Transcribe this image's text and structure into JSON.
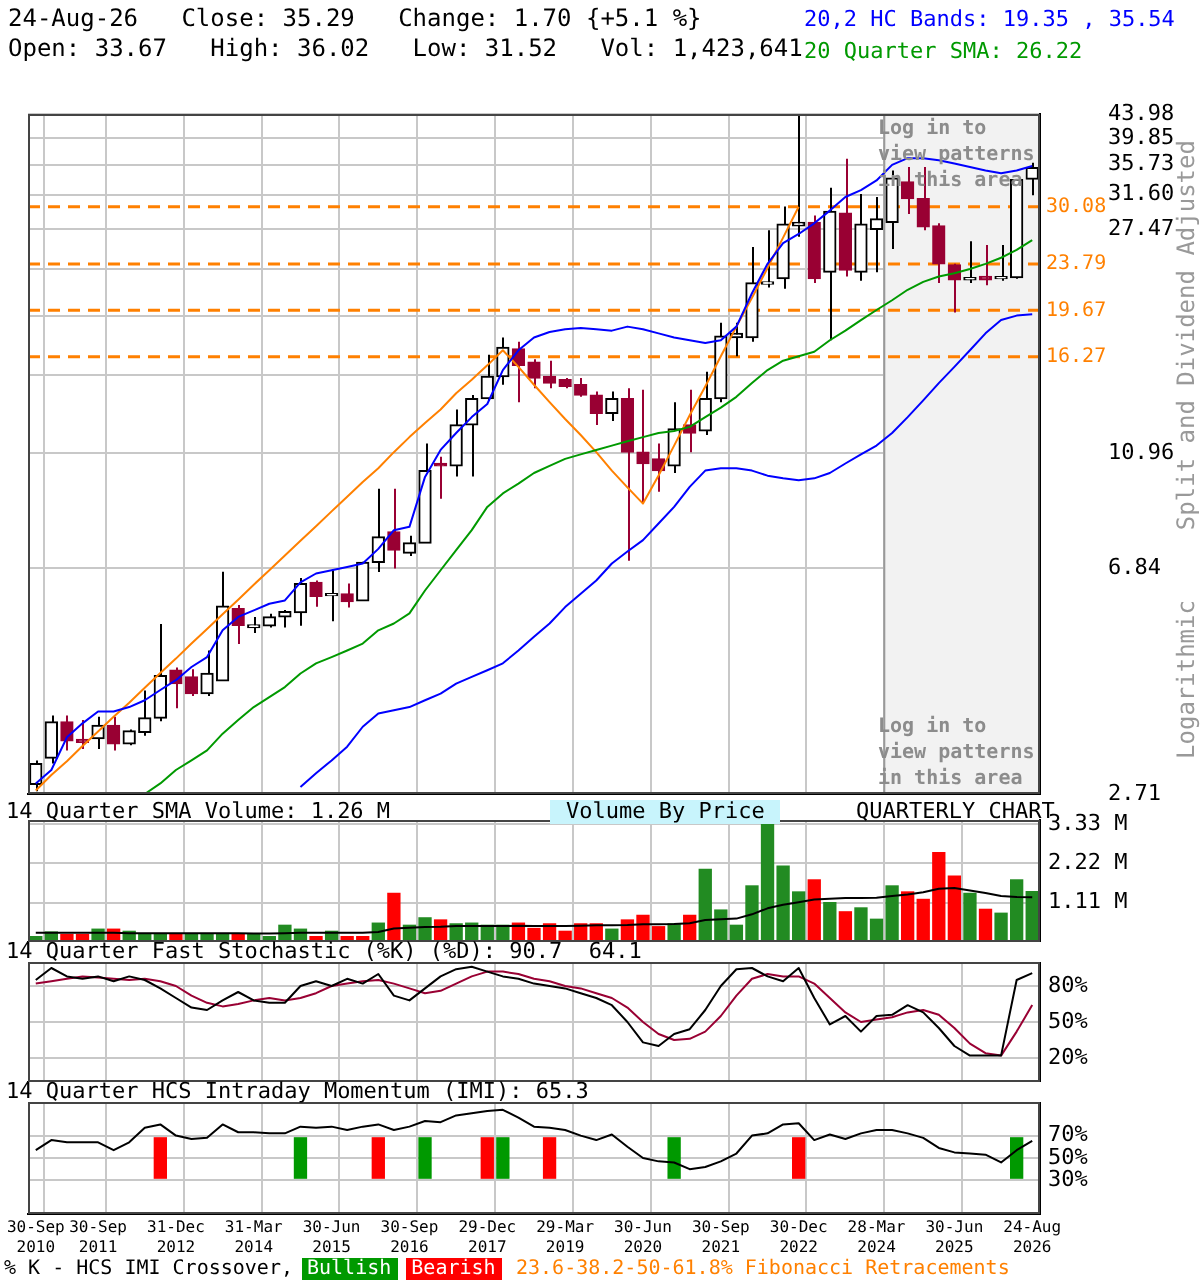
{
  "chart_data": [
    {
      "type": "candlestick",
      "title": "24-Aug-26   Close: 35.29   Change: 1.70 {+5.1 %}",
      "subtitle": "Open: 33.67   High: 36.02   Low: 31.52   Vol: 1,423,641",
      "ylabel": "Split and Dividend Adjusted",
      "annotations": [
        "Log in to view patterns in this area",
        "Log in to view patterns in this area",
        "Logarithmic"
      ],
      "categories": [
        "30-Sep 2010",
        null,
        null,
        null,
        "30-Sep 2011",
        null,
        null,
        null,
        null,
        "31-Dec 2012",
        null,
        null,
        null,
        null,
        "31-Mar 2014",
        null,
        null,
        null,
        null,
        "30-Jun 2015",
        null,
        null,
        null,
        null,
        "30-Sep 2016",
        null,
        null,
        null,
        null,
        "29-Dec 2017",
        null,
        null,
        null,
        null,
        "29-Mar 2019",
        null,
        null,
        null,
        null,
        "30-Jun 2020",
        null,
        null,
        null,
        null,
        "30-Sep 2021",
        null,
        null,
        null,
        null,
        "30-Dec 2022",
        null,
        null,
        null,
        null,
        "28-Mar 2024",
        null,
        null,
        null,
        null,
        "30-Jun 2025",
        null,
        null,
        null,
        null,
        "24-Aug 2026"
      ],
      "ohlc": [
        [
          2.82,
          3.11,
          2.74,
          3.07
        ],
        [
          3.14,
          3.74,
          3.07,
          3.64
        ],
        [
          3.64,
          3.74,
          3.24,
          3.37
        ],
        [
          3.39,
          3.67,
          3.26,
          3.35
        ],
        [
          3.4,
          3.72,
          3.26,
          3.59
        ],
        [
          3.59,
          3.72,
          3.24,
          3.33
        ],
        [
          3.33,
          3.53,
          3.31,
          3.51
        ],
        [
          3.49,
          4.14,
          3.44,
          3.7
        ],
        [
          3.7,
          5.44,
          3.65,
          4.4
        ],
        [
          4.5,
          4.55,
          3.85,
          4.26
        ],
        [
          4.38,
          4.52,
          4.05,
          4.09
        ],
        [
          4.09,
          4.88,
          4.05,
          4.44
        ],
        [
          4.31,
          6.74,
          4.31,
          5.85
        ],
        [
          5.79,
          5.88,
          5.01,
          5.41
        ],
        [
          5.36,
          5.6,
          5.24,
          5.42
        ],
        [
          5.4,
          5.67,
          5.36,
          5.6
        ],
        [
          5.6,
          5.76,
          5.36,
          5.72
        ],
        [
          5.7,
          6.57,
          5.4,
          6.42
        ],
        [
          6.45,
          6.5,
          5.84,
          6.09
        ],
        [
          6.11,
          6.78,
          5.5,
          6.13
        ],
        [
          6.15,
          6.42,
          5.82,
          5.96
        ],
        [
          5.98,
          7.02,
          5.98,
          7.0
        ],
        [
          7.0,
          9.47,
          6.73,
          7.77
        ],
        [
          7.93,
          9.47,
          6.83,
          7.36
        ],
        [
          7.27,
          7.81,
          7.19,
          7.58
        ],
        [
          7.58,
          11.4,
          7.58,
          10.2
        ],
        [
          10.5,
          10.8,
          9.09,
          10.4
        ],
        [
          10.4,
          13.1,
          9.96,
          12.3
        ],
        [
          12.3,
          13.9,
          9.96,
          13.7
        ],
        [
          13.7,
          16.4,
          13.6,
          15.0
        ],
        [
          15.0,
          17.6,
          14.5,
          16.9
        ],
        [
          16.8,
          17.3,
          13.5,
          15.7
        ],
        [
          15.9,
          16.1,
          14.3,
          14.9
        ],
        [
          15.0,
          16.0,
          14.3,
          14.6
        ],
        [
          14.8,
          14.9,
          14.3,
          14.4
        ],
        [
          14.5,
          14.9,
          13.8,
          13.9
        ],
        [
          13.9,
          14.1,
          12.3,
          12.9
        ],
        [
          12.9,
          14.1,
          12.5,
          13.7
        ],
        [
          13.7,
          14.3,
          7.05,
          11.0
        ],
        [
          11.0,
          14.2,
          8.91,
          10.5
        ],
        [
          10.7,
          11.4,
          9.35,
          10.2
        ],
        [
          10.4,
          13.5,
          10.1,
          12.1
        ],
        [
          12.3,
          14.2,
          11.0,
          11.9
        ],
        [
          12.0,
          15.3,
          11.8,
          13.7
        ],
        [
          13.7,
          18.7,
          13.5,
          17.7
        ],
        [
          17.6,
          18.7,
          16.3,
          17.9
        ],
        [
          17.6,
          25.5,
          17.3,
          22.0
        ],
        [
          21.9,
          27.3,
          21.6,
          22.1
        ],
        [
          22.4,
          30.1,
          21.5,
          28.0
        ],
        [
          27.8,
          43.98,
          26.6,
          28.2
        ],
        [
          28.2,
          29.0,
          22.0,
          22.4
        ],
        [
          23.0,
          32.5,
          17.4,
          29.5
        ],
        [
          29.3,
          36.6,
          22.6,
          23.2
        ],
        [
          23.0,
          31.7,
          22.2,
          28.0
        ],
        [
          27.4,
          31.3,
          23.0,
          28.6
        ],
        [
          28.2,
          34.9,
          25.3,
          33.8
        ],
        [
          33.3,
          35.4,
          29.2,
          31.1
        ],
        [
          31.1,
          35.4,
          27.3,
          27.7
        ],
        [
          27.8,
          28.1,
          22.0,
          23.8
        ],
        [
          23.7,
          23.8,
          19.5,
          22.3
        ],
        [
          22.3,
          26.1,
          22.0,
          22.5
        ],
        [
          22.6,
          25.7,
          21.8,
          22.3
        ],
        [
          22.4,
          25.7,
          22.2,
          22.5
        ],
        [
          22.5,
          33.7,
          22.4,
          33.59
        ],
        [
          33.67,
          36.02,
          31.52,
          35.29
        ]
      ],
      "series": [
        {
          "type": "line",
          "name": "20,2 HC Bands: 19.35 , 35.54",
          "color": "#0000ff",
          "values": [
            2.83,
            2.99,
            3.42,
            3.62,
            3.8,
            3.8,
            3.87,
            3.98,
            4.15,
            4.32,
            4.56,
            4.75,
            5.3,
            5.6,
            5.75,
            5.91,
            5.99,
            6.45,
            6.69,
            6.78,
            6.87,
            6.97,
            7.4,
            7.99,
            8.1,
            9.94,
            11.1,
            11.9,
            12.7,
            13.4,
            15.4,
            16.7,
            17.6,
            18.0,
            18.2,
            18.3,
            18.2,
            18.1,
            18.4,
            18.2,
            17.9,
            17.6,
            17.4,
            17.2,
            17.4,
            18.4,
            21.1,
            23.8,
            25.9,
            26.9,
            28.1,
            29.6,
            31.3,
            32.2,
            33.5,
            35.7,
            36.7,
            36.7,
            36.4,
            35.9,
            35.4,
            34.9,
            34.5,
            34.9,
            35.54
          ]
        },
        {
          "type": "line",
          "color": "#0000ff",
          "values": [
            null,
            null,
            null,
            null,
            null,
            null,
            null,
            null,
            null,
            null,
            null,
            null,
            null,
            null,
            null,
            null,
            null,
            2.79,
            2.95,
            3.11,
            3.29,
            3.57,
            3.77,
            3.82,
            3.87,
            3.98,
            4.09,
            4.26,
            4.38,
            4.5,
            4.63,
            4.88,
            5.16,
            5.45,
            5.83,
            6.16,
            6.5,
            6.97,
            7.32,
            7.67,
            8.21,
            8.79,
            9.54,
            10.2,
            10.3,
            10.3,
            10.2,
            9.99,
            9.88,
            9.8,
            9.88,
            10.1,
            10.5,
            10.9,
            11.3,
            11.9,
            12.7,
            13.6,
            14.6,
            15.6,
            16.7,
            17.9,
            18.9,
            19.25,
            19.35
          ]
        },
        {
          "type": "line",
          "name": "20 Quarter SMA: 26.22",
          "color": "#009900",
          "values": [
            null,
            null,
            null,
            null,
            null,
            null,
            null,
            2.71,
            2.83,
            2.99,
            3.11,
            3.24,
            3.47,
            3.67,
            3.87,
            4.03,
            4.2,
            4.44,
            4.63,
            4.75,
            4.88,
            5.02,
            5.3,
            5.45,
            5.68,
            6.24,
            6.78,
            7.36,
            7.99,
            8.79,
            9.29,
            9.67,
            10.1,
            10.4,
            10.7,
            10.9,
            11.1,
            11.3,
            11.5,
            11.7,
            11.9,
            12.0,
            12.2,
            12.7,
            13.2,
            13.8,
            14.6,
            15.4,
            16.0,
            16.3,
            16.6,
            17.4,
            18.1,
            18.9,
            19.7,
            20.5,
            21.4,
            22.1,
            22.6,
            22.9,
            23.3,
            23.8,
            24.4,
            25.2,
            26.22
          ]
        },
        {
          "type": "line",
          "color": "#ff8000",
          "values": [
            2.75,
            2.93,
            3.1,
            3.3,
            3.5,
            3.72,
            3.94,
            4.19,
            4.45,
            4.72,
            5.02,
            5.33,
            5.66,
            6.01,
            6.39,
            6.78,
            7.2,
            7.65,
            8.12,
            8.63,
            9.16,
            9.73,
            10.3,
            11.0,
            11.7,
            12.4,
            13.1,
            14.0,
            14.8,
            15.7,
            16.7,
            15.6,
            14.5,
            13.5,
            12.6,
            11.8,
            11.0,
            10.2,
            9.52,
            8.91,
            10.0,
            11.3,
            12.8,
            14.4,
            16.3,
            18.4,
            20.7,
            23.4,
            26.5,
            30.08,
            null,
            null,
            null,
            null,
            null,
            null,
            null,
            null,
            null,
            null,
            null,
            null,
            null,
            null,
            null
          ]
        }
      ],
      "ylim": [
        2.71,
        43.98
      ],
      "yticks": [
        43.98,
        39.85,
        35.73,
        {
          "value": 31.6,
          "label": "31.60"
        },
        27.47,
        {
          "value": 23.34,
          "label": null
        },
        {
          "value": 19.22,
          "label": null
        },
        {
          "value": 15.09,
          "label": null
        },
        10.96,
        6.84,
        2.71
      ],
      "log": true,
      "grid": true,
      "legend": "top right",
      "tick_labels": "y",
      "ref_lines": [
        {
          "axis": "y",
          "value": 30.08,
          "label": "30.08",
          "color": "#ff8000",
          "line_style": "dashed"
        },
        {
          "axis": "y",
          "value": 23.79,
          "label": "23.79",
          "color": "#ff8000",
          "line_style": "dashed"
        },
        {
          "axis": "y",
          "value": 19.67,
          "label": "19.67",
          "color": "#ff8000",
          "line_style": "dashed"
        },
        {
          "axis": "y",
          "value": 16.27,
          "label": "16.27",
          "color": "#ff8000",
          "line_style": "dashed"
        }
      ],
      "bands": [
        {
          "axis": "x",
          "from": "28-Mar 2024",
          "to": "24-Aug 2026",
          "color": "#f2f2f2"
        }
      ]
    },
    {
      "type": "bar",
      "annotations": [
        "Volume By Price",
        "QUARTERLY CHART"
      ],
      "categories": [
        "30-Sep 2010",
        null,
        null,
        null,
        "30-Sep 2011",
        null,
        null,
        null,
        null,
        "31-Dec 2012",
        null,
        null,
        null,
        null,
        "31-Mar 2014",
        null,
        null,
        null,
        null,
        "30-Jun 2015",
        null,
        null,
        null,
        null,
        "30-Sep 2016",
        null,
        null,
        null,
        null,
        "29-Dec 2017",
        null,
        null,
        null,
        null,
        "29-Mar 2019",
        null,
        null,
        null,
        null,
        "30-Jun 2020",
        null,
        null,
        null,
        null,
        "30-Sep 2021",
        null,
        null,
        null,
        null,
        "30-Dec 2022",
        null,
        null,
        null,
        null,
        "28-Mar 2024",
        null,
        null,
        null,
        null,
        "30-Jun 2025",
        null,
        null,
        null,
        null,
        "24-Aug 2026"
      ],
      "series": [
        {
          "type": "bar",
          "colors": [
            "#228b22",
            "#228b22",
            "#ff0000",
            "#ff0000",
            "#228b22",
            "#ff0000",
            "#228b22",
            "#228b22",
            "#228b22",
            "#ff0000",
            "#228b22",
            "#228b22",
            "#228b22",
            "#ff0000",
            "#228b22",
            "#228b22",
            "#228b22",
            "#228b22",
            "#ff0000",
            "#228b22",
            "#ff0000",
            "#ff0000",
            "#228b22",
            "#ff0000",
            "#228b22",
            "#228b22",
            "#ff0000",
            "#228b22",
            "#228b22",
            "#228b22",
            "#228b22",
            "#ff0000",
            "#ff0000",
            "#ff0000",
            "#ff0000",
            "#ff0000",
            "#ff0000",
            "#228b22",
            "#ff0000",
            "#ff0000",
            "#ff0000",
            "#228b22",
            "#ff0000",
            "#228b22",
            "#228b22",
            "#228b22",
            "#228b22",
            "#228b22",
            "#228b22",
            "#228b22",
            "#ff0000",
            "#228b22",
            "#ff0000",
            "#228b22",
            "#228b22",
            "#228b22",
            "#ff0000",
            "#ff0000",
            "#ff0000",
            "#ff0000",
            "#228b22",
            "#ff0000",
            "#228b22",
            "#228b22",
            "#228b22"
          ],
          "values": [
            0.15,
            0.28,
            0.21,
            0.21,
            0.36,
            0.36,
            0.3,
            0.23,
            0.21,
            0.21,
            0.21,
            0.21,
            0.21,
            0.21,
            0.21,
            0.15,
            0.47,
            0.36,
            0.15,
            0.3,
            0.15,
            0.15,
            0.53,
            1.37,
            0.47,
            0.68,
            0.62,
            0.51,
            0.53,
            0.47,
            0.47,
            0.53,
            0.38,
            0.51,
            0.3,
            0.51,
            0.51,
            0.36,
            0.62,
            0.75,
            0.43,
            0.51,
            0.75,
            2.05,
            0.9,
            0.47,
            1.58,
            3.33,
            2.14,
            1.41,
            1.75,
            1.11,
            0.85,
            0.96,
            0.64,
            1.58,
            1.41,
            1.2,
            2.52,
            1.86,
            1.37,
            0.92,
            0.81,
            1.75,
            1.42
          ]
        },
        {
          "type": "line",
          "name": "14 Quarter SMA Volume: 1.26 M",
          "color": "#000000",
          "values": [
            0.26,
            0.26,
            0.26,
            0.26,
            0.26,
            0.26,
            0.25,
            0.25,
            0.25,
            0.25,
            0.25,
            0.25,
            0.25,
            0.25,
            0.24,
            0.24,
            0.25,
            0.26,
            0.26,
            0.26,
            0.26,
            0.26,
            0.28,
            0.38,
            0.4,
            0.42,
            0.43,
            0.45,
            0.45,
            0.45,
            0.45,
            0.46,
            0.45,
            0.45,
            0.45,
            0.46,
            0.47,
            0.47,
            0.48,
            0.5,
            0.5,
            0.51,
            0.53,
            0.62,
            0.64,
            0.66,
            0.78,
            0.95,
            1.05,
            1.12,
            1.2,
            1.22,
            1.24,
            1.24,
            1.25,
            1.3,
            1.34,
            1.4,
            1.5,
            1.52,
            1.45,
            1.38,
            1.3,
            1.27,
            1.26
          ]
        }
      ],
      "ylim": [
        0,
        3.44
      ],
      "yticks": [
        {
          "value": 1.11,
          "label": "1.11 M"
        },
        {
          "value": 2.22,
          "label": "2.22 M"
        },
        {
          "value": 3.33,
          "label": "3.33 M"
        }
      ],
      "grid": true,
      "legend": "top left",
      "tick_labels": "y"
    },
    {
      "type": "line",
      "title": "14 Quarter Fast Stochastic (%K) (%D): 90.7  64.1",
      "categories": [
        "30-Sep 2010",
        null,
        null,
        null,
        "30-Sep 2011",
        null,
        null,
        null,
        null,
        "31-Dec 2012",
        null,
        null,
        null,
        null,
        "31-Mar 2014",
        null,
        null,
        null,
        null,
        "30-Jun 2015",
        null,
        null,
        null,
        null,
        "30-Sep 2016",
        null,
        null,
        null,
        null,
        "29-Dec 2017",
        null,
        null,
        null,
        null,
        "29-Mar 2019",
        null,
        null,
        null,
        null,
        "30-Jun 2020",
        null,
        null,
        null,
        null,
        "30-Sep 2021",
        null,
        null,
        null,
        null,
        "30-Dec 2022",
        null,
        null,
        null,
        null,
        "28-Mar 2024",
        null,
        null,
        null,
        null,
        "30-Jun 2025",
        null,
        null,
        null,
        null,
        "24-Aug 2026"
      ],
      "series": [
        {
          "color": "#000000",
          "values": [
            85,
            95,
            88,
            86,
            88,
            84,
            88,
            85,
            78,
            70,
            62,
            60,
            68,
            75,
            68,
            66,
            66,
            80,
            84,
            80,
            86,
            82,
            90,
            72,
            68,
            78,
            88,
            94,
            96,
            92,
            88,
            86,
            82,
            80,
            78,
            74,
            70,
            64,
            50,
            33,
            30,
            40,
            44,
            60,
            80,
            94,
            95,
            88,
            84,
            95,
            70,
            48,
            55,
            42,
            55,
            56,
            64,
            58,
            45,
            30,
            22,
            22,
            22,
            85,
            90.7
          ]
        },
        {
          "color": "#990033",
          "values": [
            82,
            84,
            86,
            88,
            87,
            86,
            85,
            86,
            84,
            80,
            72,
            66,
            63,
            65,
            68,
            70,
            68,
            70,
            74,
            80,
            82,
            84,
            85,
            82,
            78,
            74,
            76,
            82,
            88,
            92,
            92,
            90,
            86,
            84,
            80,
            78,
            74,
            70,
            62,
            50,
            40,
            35,
            36,
            42,
            55,
            72,
            86,
            90,
            88,
            88,
            82,
            70,
            58,
            50,
            52,
            54,
            58,
            60,
            56,
            45,
            32,
            24,
            22,
            42,
            64.1
          ]
        }
      ],
      "ylim": [
        0,
        100
      ],
      "yticks": [
        {
          "value": 20,
          "label": "20%"
        },
        {
          "value": 50,
          "label": "50%"
        },
        {
          "value": 80,
          "label": "80%"
        }
      ],
      "grid": true,
      "tick_labels": "y"
    },
    {
      "type": "line",
      "title": "14 Quarter HCS Intraday Momentum (IMI): 65.3",
      "legend_title": "% K - HCS IMI Crossover,",
      "annotations": [
        "23.6-38.2-50-61.8% Fibonacci Retracements"
      ],
      "categories": [
        "30-Sep 2010",
        null,
        null,
        null,
        "30-Sep 2011",
        null,
        null,
        null,
        null,
        "31-Dec 2012",
        null,
        null,
        null,
        null,
        "31-Mar 2014",
        null,
        null,
        null,
        null,
        "30-Jun 2015",
        null,
        null,
        null,
        null,
        "30-Sep 2016",
        null,
        null,
        null,
        null,
        "29-Dec 2017",
        null,
        null,
        null,
        null,
        "29-Mar 2019",
        null,
        null,
        null,
        null,
        "30-Jun 2020",
        null,
        null,
        null,
        null,
        "30-Sep 2021",
        null,
        null,
        null,
        null,
        "30-Dec 2022",
        null,
        null,
        null,
        null,
        "28-Mar 2024",
        null,
        null,
        null,
        null,
        "30-Jun 2025",
        null,
        null,
        null,
        null,
        "24-Aug 2026"
      ],
      "series": [
        {
          "type": "line",
          "color": "#000000",
          "values": [
            57,
            66,
            64,
            64,
            64,
            57,
            64,
            77,
            80,
            70,
            67,
            68,
            80,
            73,
            73,
            72,
            72,
            78,
            77,
            78,
            75,
            78,
            80,
            75,
            78,
            83,
            82,
            88,
            90,
            92,
            93,
            86,
            78,
            77,
            75,
            70,
            66,
            71,
            60,
            50,
            47,
            46,
            40,
            42,
            47,
            54,
            70,
            72,
            80,
            81,
            66,
            71,
            67,
            72,
            75,
            75,
            72,
            68,
            59,
            55,
            54,
            53,
            46,
            57,
            65.3
          ]
        },
        {
          "type": "bar",
          "name": "Bullish",
          "color": "#009900",
          "base": [
            null,
            null,
            null,
            null,
            null,
            null,
            null,
            null,
            null,
            null,
            null,
            null,
            null,
            null,
            null,
            null,
            null,
            32,
            null,
            null,
            null,
            null,
            null,
            null,
            null,
            32,
            null,
            null,
            null,
            null,
            32,
            null,
            null,
            null,
            null,
            null,
            null,
            null,
            null,
            null,
            null,
            32,
            null,
            null,
            null,
            null,
            null,
            null,
            null,
            null,
            null,
            null,
            null,
            null,
            null,
            null,
            null,
            null,
            null,
            null,
            null,
            null,
            null,
            32,
            null
          ],
          "values": [
            null,
            null,
            null,
            null,
            null,
            null,
            null,
            null,
            null,
            null,
            null,
            null,
            null,
            null,
            null,
            null,
            null,
            36,
            null,
            null,
            null,
            null,
            null,
            null,
            null,
            36,
            null,
            null,
            null,
            null,
            36,
            null,
            null,
            null,
            null,
            null,
            null,
            null,
            null,
            null,
            null,
            36,
            null,
            null,
            null,
            null,
            null,
            null,
            null,
            null,
            null,
            null,
            null,
            null,
            null,
            null,
            null,
            null,
            null,
            null,
            null,
            null,
            null,
            36,
            null
          ]
        },
        {
          "type": "bar",
          "name": "Bearish",
          "color": "#ff0000",
          "base": [
            null,
            null,
            null,
            null,
            null,
            null,
            null,
            null,
            32,
            null,
            null,
            null,
            null,
            null,
            null,
            null,
            null,
            null,
            null,
            null,
            null,
            null,
            32,
            null,
            null,
            null,
            null,
            null,
            null,
            32,
            null,
            null,
            null,
            32,
            null,
            null,
            null,
            null,
            null,
            null,
            null,
            null,
            null,
            null,
            null,
            null,
            null,
            null,
            null,
            32,
            null,
            null,
            null,
            null,
            null,
            null,
            null,
            null,
            null,
            null,
            null,
            null,
            null,
            null,
            null
          ],
          "values": [
            null,
            null,
            null,
            null,
            null,
            null,
            null,
            null,
            36,
            null,
            null,
            null,
            null,
            null,
            null,
            null,
            null,
            null,
            null,
            null,
            null,
            null,
            36,
            null,
            null,
            null,
            null,
            null,
            null,
            36,
            null,
            null,
            null,
            36,
            null,
            null,
            null,
            null,
            null,
            null,
            null,
            null,
            null,
            null,
            null,
            null,
            null,
            null,
            null,
            36,
            null,
            null,
            null,
            null,
            null,
            null,
            null,
            null,
            null,
            null,
            null,
            null,
            null,
            null,
            null
          ]
        }
      ],
      "ylim": [
        0,
        100
      ],
      "yticks": [
        {
          "value": 30,
          "label": "30%"
        },
        {
          "value": 50,
          "label": "50%"
        },
        {
          "value": 70,
          "label": "70%"
        }
      ],
      "grid": true,
      "legend": "bottom"
    }
  ]
}
